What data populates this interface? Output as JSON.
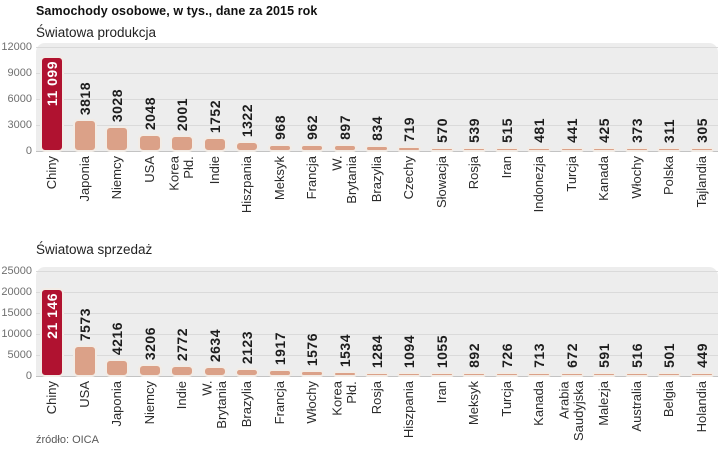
{
  "title": "Samochody osobowe, w tys., dane za 2015 rok",
  "source": "źródło: OICA",
  "colors": {
    "highlight_bar": "#b01230",
    "bar": "#dba188",
    "bar_border": "#f2ece6",
    "plot_background": "#ededed",
    "gridline": "#dadada",
    "baseline": "#c3c3c3",
    "axis_text": "#6f6f6f",
    "value_text": "#1d1d1d",
    "highlight_value_text": "#ffffff",
    "category_text": "#2b2b2b"
  },
  "chart_data": [
    {
      "type": "bar",
      "title": "Światowa produkcja",
      "categories": [
        "Chiny",
        "Japonia",
        "Niemcy",
        "USA",
        "Korea Płd.",
        "Indie",
        "Hiszpania",
        "Meksyk",
        "Francja",
        "W. Brytania",
        "Brazylia",
        "Czechy",
        "Słowacja",
        "Rosja",
        "Iran",
        "Indonezja",
        "Turcja",
        "Kanada",
        "Włochy",
        "Polska",
        "Tajlandia"
      ],
      "values": [
        11099,
        3818,
        3028,
        2048,
        2001,
        1752,
        1322,
        968,
        962,
        897,
        834,
        719,
        570,
        539,
        515,
        481,
        441,
        425,
        373,
        311,
        305
      ],
      "value_labels": [
        "11 099",
        "3818",
        "3028",
        "2048",
        "2001",
        "1752",
        "1322",
        "968",
        "962",
        "897",
        "834",
        "719",
        "570",
        "539",
        "515",
        "481",
        "441",
        "425",
        "373",
        "311",
        "305"
      ],
      "ylim": [
        0,
        12000
      ],
      "yticks": [
        0,
        3000,
        6000,
        9000,
        12000
      ],
      "highlight_index": 0,
      "grid": true,
      "legend": null
    },
    {
      "type": "bar",
      "title": "Światowa sprzedaż",
      "categories": [
        "Chiny",
        "USA",
        "Japonia",
        "Niemcy",
        "Indie",
        "W. Brytania",
        "Brazylia",
        "Francja",
        "Włochy",
        "Korea Płd.",
        "Rosja",
        "Hiszpania",
        "Iran",
        "Meksyk",
        "Turcja",
        "Kanada",
        "Arabia\nSaudyjska",
        "Malezja",
        "Australia",
        "Belgia",
        "Holandia"
      ],
      "values": [
        21146,
        7573,
        4216,
        3206,
        2772,
        2634,
        2123,
        1917,
        1576,
        1534,
        1284,
        1094,
        1055,
        892,
        726,
        713,
        672,
        591,
        516,
        501,
        449
      ],
      "value_labels": [
        "21 146",
        "7573",
        "4216",
        "3206",
        "2772",
        "2634",
        "2123",
        "1917",
        "1576",
        "1534",
        "1284",
        "1094",
        "1055",
        "892",
        "726",
        "713",
        "672",
        "591",
        "516",
        "501",
        "449"
      ],
      "ylim": [
        0,
        25000
      ],
      "yticks": [
        0,
        5000,
        10000,
        15000,
        20000,
        25000
      ],
      "highlight_index": 0,
      "grid": true,
      "legend": null
    }
  ]
}
